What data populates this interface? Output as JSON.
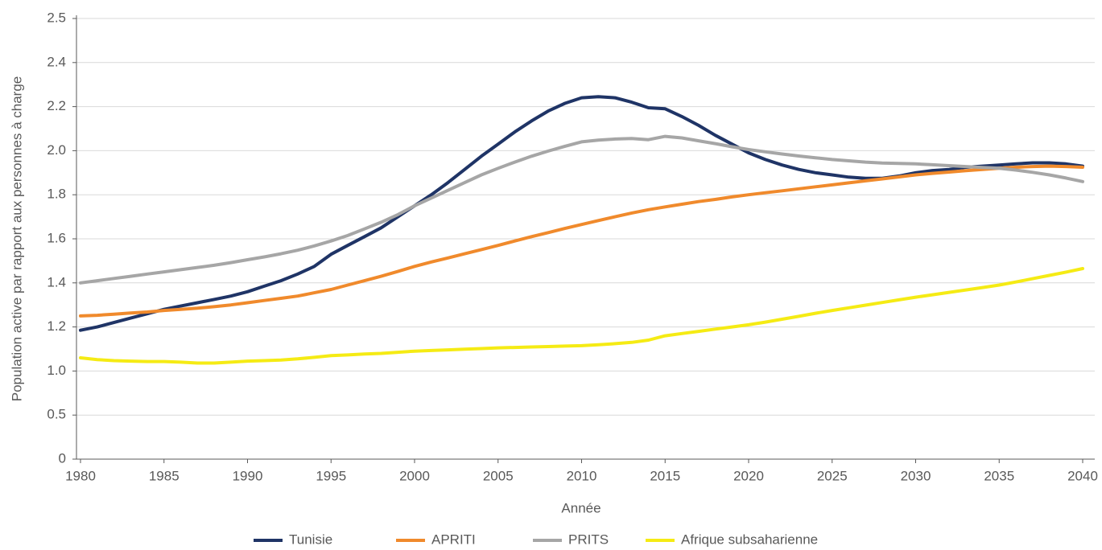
{
  "chart_data": {
    "type": "line",
    "y_label": "Population active par rapport aux personnes à charge",
    "x_label": "Année",
    "x": [
      1980,
      1981,
      1982,
      1983,
      1984,
      1985,
      1986,
      1987,
      1988,
      1989,
      1990,
      1991,
      1992,
      1993,
      1994,
      1995,
      1996,
      1997,
      1998,
      1999,
      2000,
      2001,
      2002,
      2003,
      2004,
      2005,
      2006,
      2007,
      2008,
      2009,
      2010,
      2011,
      2012,
      2013,
      2014,
      2015,
      2016,
      2017,
      2018,
      2019,
      2020,
      2021,
      2022,
      2023,
      2024,
      2025,
      2026,
      2027,
      2028,
      2029,
      2030,
      2031,
      2032,
      2033,
      2034,
      2035,
      2036,
      2037,
      2038,
      2039,
      2040
    ],
    "series": [
      {
        "name": "Tunisie",
        "color": "#1f3466",
        "values": [
          1.185,
          1.2,
          1.22,
          1.24,
          1.26,
          1.28,
          1.295,
          1.31,
          1.325,
          1.34,
          1.36,
          1.385,
          1.41,
          1.44,
          1.475,
          1.53,
          1.57,
          1.61,
          1.65,
          1.7,
          1.75,
          1.8,
          1.855,
          1.915,
          1.975,
          2.03,
          2.085,
          2.135,
          2.18,
          2.215,
          2.24,
          2.245,
          2.24,
          2.22,
          2.195,
          2.19,
          2.155,
          2.115,
          2.07,
          2.03,
          1.99,
          1.96,
          1.935,
          1.915,
          1.9,
          1.89,
          1.88,
          1.875,
          1.875,
          1.885,
          1.9,
          1.91,
          1.915,
          1.925,
          1.93,
          1.935,
          1.94,
          1.945,
          1.945,
          1.94,
          1.93
        ]
      },
      {
        "name": "APRITI",
        "color": "#f08a2c",
        "values": [
          1.25,
          1.253,
          1.258,
          1.263,
          1.268,
          1.275,
          1.28,
          1.285,
          1.292,
          1.3,
          1.31,
          1.32,
          1.33,
          1.34,
          1.355,
          1.37,
          1.39,
          1.41,
          1.43,
          1.452,
          1.475,
          1.495,
          1.513,
          1.532,
          1.551,
          1.57,
          1.59,
          1.61,
          1.628,
          1.647,
          1.665,
          1.683,
          1.7,
          1.717,
          1.732,
          1.745,
          1.757,
          1.769,
          1.779,
          1.79,
          1.8,
          1.809,
          1.818,
          1.827,
          1.836,
          1.845,
          1.854,
          1.863,
          1.872,
          1.881,
          1.89,
          1.897,
          1.903,
          1.909,
          1.915,
          1.92,
          1.925,
          1.928,
          1.93,
          1.928,
          1.925
        ]
      },
      {
        "name": "PRITS",
        "color": "#a6a6a6",
        "values": [
          1.4,
          1.41,
          1.42,
          1.43,
          1.44,
          1.45,
          1.46,
          1.47,
          1.48,
          1.492,
          1.505,
          1.518,
          1.532,
          1.548,
          1.568,
          1.59,
          1.615,
          1.645,
          1.675,
          1.71,
          1.75,
          1.785,
          1.82,
          1.855,
          1.89,
          1.92,
          1.948,
          1.975,
          1.998,
          2.02,
          2.04,
          2.048,
          2.053,
          2.055,
          2.05,
          2.065,
          2.058,
          2.045,
          2.032,
          2.018,
          2.005,
          1.995,
          1.985,
          1.976,
          1.968,
          1.96,
          1.954,
          1.948,
          1.944,
          1.942,
          1.94,
          1.936,
          1.932,
          1.928,
          1.924,
          1.92,
          1.912,
          1.902,
          1.89,
          1.876,
          1.86
        ]
      },
      {
        "name": "Afrique subsaharienne",
        "color": "#f5eb14",
        "values": [
          1.06,
          1.052,
          1.047,
          1.045,
          1.043,
          1.043,
          1.04,
          1.036,
          1.036,
          1.04,
          1.045,
          1.047,
          1.05,
          1.055,
          1.062,
          1.07,
          1.073,
          1.077,
          1.08,
          1.085,
          1.09,
          1.093,
          1.096,
          1.099,
          1.102,
          1.105,
          1.107,
          1.109,
          1.111,
          1.113,
          1.115,
          1.119,
          1.124,
          1.13,
          1.14,
          1.16,
          1.17,
          1.18,
          1.19,
          1.2,
          1.21,
          1.222,
          1.235,
          1.248,
          1.262,
          1.275,
          1.287,
          1.299,
          1.311,
          1.323,
          1.335,
          1.346,
          1.357,
          1.368,
          1.379,
          1.39,
          1.404,
          1.419,
          1.434,
          1.449,
          1.465
        ]
      }
    ],
    "xlim": [
      1980,
      2040
    ],
    "xticks": [
      1980,
      1985,
      1990,
      1995,
      2000,
      2005,
      2010,
      2015,
      2020,
      2025,
      2030,
      2035,
      2040
    ],
    "ylim": [
      0,
      2.5
    ],
    "yticks": [
      0,
      0.5,
      {
        "value": 1,
        "label": "1.0"
      },
      1.2,
      1.4,
      1.6,
      1.8,
      {
        "value": 2,
        "label": "2.0"
      },
      2.2,
      2.4,
      2.5
    ],
    "grid": true,
    "legend": "bottom"
  }
}
